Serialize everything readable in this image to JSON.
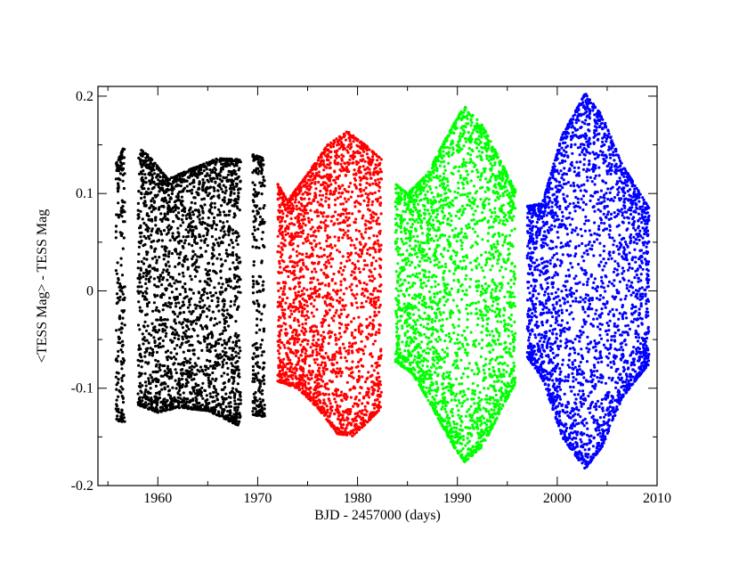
{
  "chart_data": {
    "type": "scatter",
    "title": "",
    "xlabel": "BJD - 2457000 (days)",
    "ylabel": "<TESS Mag> - TESS Mag",
    "xlim": [
      1954,
      2010
    ],
    "ylim": [
      -0.2,
      0.21
    ],
    "x_ticks": [
      1960,
      1970,
      1980,
      1990,
      2000,
      2010
    ],
    "y_ticks": [
      -0.2,
      -0.1,
      0,
      0.1,
      0.2
    ],
    "y_tick_labels": [
      "-0.2",
      "-0.1",
      "0",
      "0.1",
      "0.2"
    ],
    "grid": false,
    "legend": "none",
    "series": [
      {
        "color": "#000000",
        "segments": [
          {
            "x_start": 1955.8,
            "x_end": 1956.7,
            "upper": [
              [
                1955.8,
                0.13
              ],
              [
                1956.7,
                0.15
              ]
            ],
            "lower": [
              [
                1955.8,
                -0.133
              ],
              [
                1956.7,
                -0.135
              ]
            ]
          },
          {
            "x_start": 1958.0,
            "x_end": 1968.3,
            "upper": [
              [
                1958.0,
                0.147
              ],
              [
                1959.0,
                0.14
              ],
              [
                1961.0,
                0.115
              ],
              [
                1964.0,
                0.128
              ],
              [
                1966.0,
                0.136
              ],
              [
                1968.3,
                0.135
              ]
            ],
            "lower": [
              [
                1958.0,
                -0.117
              ],
              [
                1960.0,
                -0.125
              ],
              [
                1962.0,
                -0.12
              ],
              [
                1965.0,
                -0.123
              ],
              [
                1968.0,
                -0.138
              ],
              [
                1968.3,
                -0.13
              ]
            ]
          },
          {
            "x_start": 1969.5,
            "x_end": 1970.7,
            "upper": [
              [
                1969.5,
                0.14
              ],
              [
                1970.7,
                0.136
              ]
            ],
            "lower": [
              [
                1969.5,
                -0.127
              ],
              [
                1970.7,
                -0.13
              ]
            ]
          }
        ]
      },
      {
        "color": "#ff0000",
        "segments": [
          {
            "x_start": 1972.0,
            "x_end": 1982.4,
            "upper": [
              [
                1972.0,
                0.11
              ],
              [
                1973.0,
                0.093
              ],
              [
                1975.0,
                0.12
              ],
              [
                1977.0,
                0.15
              ],
              [
                1979.0,
                0.164
              ],
              [
                1981.0,
                0.148
              ],
              [
                1982.4,
                0.135
              ]
            ],
            "lower": [
              [
                1972.0,
                -0.093
              ],
              [
                1974.0,
                -0.1
              ],
              [
                1976.0,
                -0.12
              ],
              [
                1978.0,
                -0.147
              ],
              [
                1979.5,
                -0.149
              ],
              [
                1981.0,
                -0.135
              ],
              [
                1982.4,
                -0.12
              ]
            ]
          }
        ]
      },
      {
        "color": "#00ff00",
        "segments": [
          {
            "x_start": 1983.8,
            "x_end": 1995.8,
            "upper": [
              [
                1983.8,
                0.11
              ],
              [
                1985.0,
                0.1
              ],
              [
                1987.0,
                0.12
              ],
              [
                1989.0,
                0.16
              ],
              [
                1990.7,
                0.19
              ],
              [
                1992.5,
                0.17
              ],
              [
                1994.5,
                0.13
              ],
              [
                1995.8,
                0.103
              ]
            ],
            "lower": [
              [
                1983.8,
                -0.073
              ],
              [
                1985.5,
                -0.085
              ],
              [
                1987.5,
                -0.12
              ],
              [
                1989.5,
                -0.158
              ],
              [
                1990.7,
                -0.176
              ],
              [
                1992.5,
                -0.16
              ],
              [
                1994.5,
                -0.12
              ],
              [
                1995.8,
                -0.095
              ]
            ]
          }
        ]
      },
      {
        "color": "#0000ff",
        "segments": [
          {
            "x_start": 1997.0,
            "x_end": 2009.2,
            "upper": [
              [
                1997.0,
                0.087
              ],
              [
                1998.5,
                0.09
              ],
              [
                2000.5,
                0.16
              ],
              [
                2002.8,
                0.203
              ],
              [
                2004.5,
                0.18
              ],
              [
                2006.5,
                0.13
              ],
              [
                2008.0,
                0.105
              ],
              [
                2009.2,
                0.085
              ]
            ],
            "lower": [
              [
                1997.0,
                -0.068
              ],
              [
                1998.5,
                -0.09
              ],
              [
                2000.5,
                -0.15
              ],
              [
                2002.8,
                -0.183
              ],
              [
                2004.5,
                -0.16
              ],
              [
                2006.5,
                -0.11
              ],
              [
                2008.0,
                -0.09
              ],
              [
                2009.2,
                -0.075
              ]
            ]
          }
        ]
      }
    ]
  }
}
